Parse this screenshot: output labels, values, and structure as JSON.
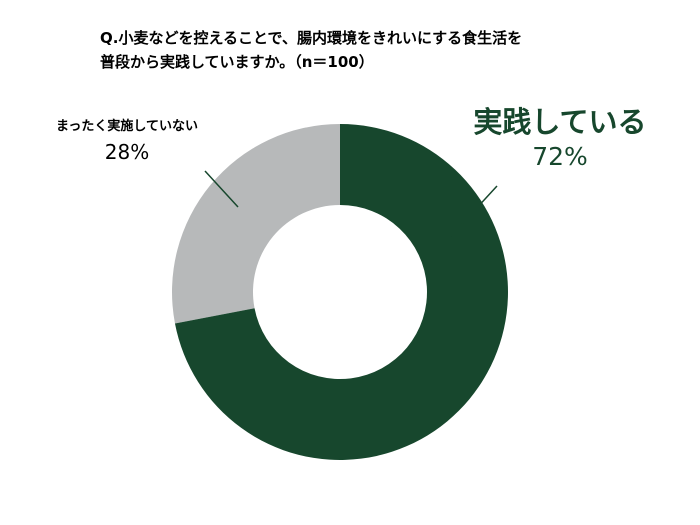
{
  "chart_data": {
    "type": "pie",
    "donut": true,
    "title": "Q.小麦などを控えることで、腸内環境をきれいにする食生活を普段から実践していますか。（n＝100）",
    "title_lines": [
      "Q.小麦などを控えることで、腸内環境をきれいにする食生活を",
      "普段から実践していますか。（n＝100）"
    ],
    "n": 100,
    "start_angle_deg": 0,
    "direction": "clockwise",
    "inner_radius_ratio": 0.52,
    "legend_position": "callout-labels",
    "leader_line_color": "#17472d",
    "segments": [
      {
        "label": "実践している",
        "value": 72,
        "pct_label": "72%",
        "color": "#17472d"
      },
      {
        "label": "まったく実施していない",
        "value": 28,
        "pct_label": "28%",
        "color": "#b7b9ba"
      }
    ]
  }
}
